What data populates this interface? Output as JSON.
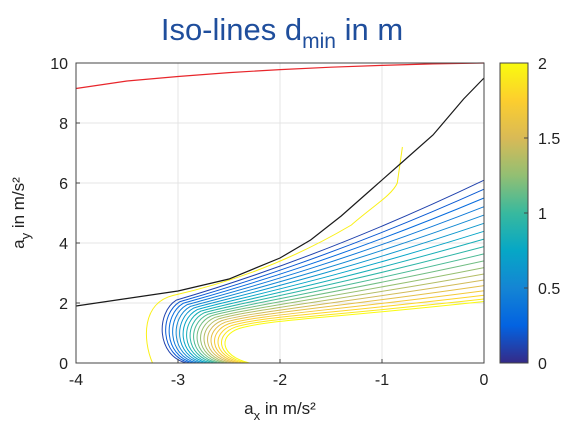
{
  "title": {
    "main": "Iso-lines d",
    "sub": "min",
    "rest": " in m"
  },
  "axes": {
    "xlabel": {
      "main": "a",
      "sub": "x",
      "rest": " in m/s²"
    },
    "ylabel": {
      "main": "a",
      "sub": "y",
      "rest": " in m/s²"
    }
  },
  "colors": {
    "red_curve": "#e8262b",
    "black_curve": "#1a1a1a",
    "grid": "#e4e4e4",
    "axis": "#444444",
    "colormap_parula": [
      "#352a87",
      "#0363e1",
      "#1485d4",
      "#06a7c6",
      "#38b99e",
      "#92bf73",
      "#d9ba56",
      "#fcce2e",
      "#f9fb0e"
    ]
  },
  "chart_data": {
    "type": "line",
    "title": "Iso-lines d_min in m",
    "xlabel": "a_x in m/s²",
    "ylabel": "a_y in m/s²",
    "xlim": [
      -4,
      0
    ],
    "ylim": [
      0,
      10
    ],
    "xticks": [
      -4,
      -3,
      -2,
      -1,
      0
    ],
    "yticks": [
      0,
      2,
      4,
      6,
      8,
      10
    ],
    "grid": true,
    "colorbar": {
      "range": [
        0,
        2
      ],
      "ticks": [
        0,
        0.5,
        1,
        1.5,
        2
      ],
      "colormap": "parula",
      "placement": "right"
    },
    "boundary_curves": [
      {
        "color": "red",
        "x": [
          -4,
          -3.5,
          -3,
          -2.5,
          -2,
          -1.5,
          -1,
          -0.5,
          0
        ],
        "y": [
          9.15,
          9.4,
          9.55,
          9.68,
          9.78,
          9.86,
          9.92,
          9.97,
          10
        ]
      },
      {
        "color": "black",
        "x": [
          -4,
          -3.5,
          -3.0,
          -2.5,
          -2.0,
          -1.7,
          -1.4,
          -1.1,
          -0.8,
          -0.5,
          -0.2,
          0
        ],
        "y": [
          1.9,
          2.15,
          2.4,
          2.8,
          3.5,
          4.1,
          4.9,
          5.8,
          6.7,
          7.6,
          8.8,
          9.5
        ]
      }
    ],
    "iso_lines": {
      "description_levels": "from d_min = 0 (dark blue, innermost) to d_min = 2 (yellow, outermost)",
      "count": 20,
      "level_min": 0,
      "level_max": 2,
      "bottom_x": [
        -2.55,
        -3.2
      ],
      "knee_y": [
        1.15,
        2.15
      ],
      "right_y_at_0": [
        2.05,
        6.4
      ],
      "knee_x": [
        -2.3,
        -1.7
      ],
      "last_line": {
        "level": 2,
        "x": [
          -0.8,
          -0.85,
          -1.0,
          -1.3
        ],
        "y": [
          7.2,
          6.0,
          5.3,
          4.6
        ]
      }
    }
  }
}
